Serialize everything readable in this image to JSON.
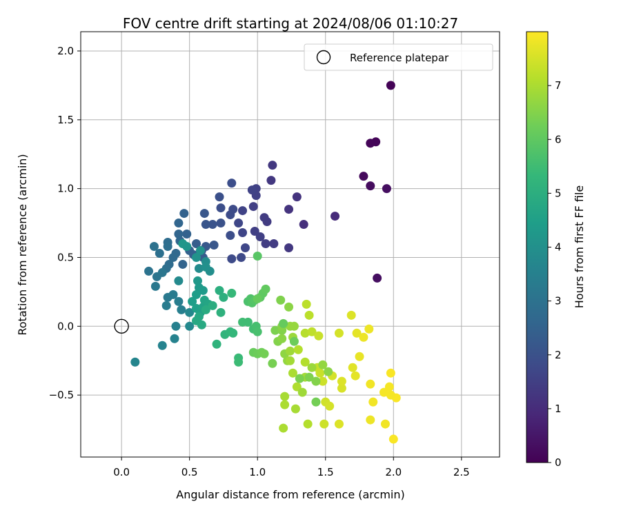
{
  "chart_data": {
    "type": "scatter",
    "title": "FOV centre drift starting at 2024/08/06 01:10:27",
    "xlabel": "Angular distance from reference (arcmin)",
    "ylabel": "Rotation from reference (arcmin)",
    "xlim": [
      -0.3,
      2.78
    ],
    "ylim": [
      -0.95,
      2.14
    ],
    "xticks": [
      0.0,
      0.5,
      1.0,
      1.5,
      2.0,
      2.5
    ],
    "xtick_labels": [
      "0.0",
      "0.5",
      "1.0",
      "1.5",
      "2.0",
      "2.5"
    ],
    "yticks": [
      -0.5,
      0.0,
      0.5,
      1.0,
      1.5,
      2.0
    ],
    "ytick_labels": [
      "−0.5",
      "0.0",
      "0.5",
      "1.0",
      "1.5",
      "2.0"
    ],
    "grid": true,
    "legend": {
      "position": "top-right",
      "entries": [
        "Reference platepar"
      ]
    },
    "colormap": "viridis",
    "colorbar": {
      "label": "Hours from first FF file",
      "range": [
        0,
        8
      ],
      "ticks": [
        0,
        1,
        2,
        3,
        4,
        5,
        6,
        7
      ],
      "tick_labels": [
        "0",
        "1",
        "2",
        "3",
        "4",
        "5",
        "6",
        "7"
      ]
    },
    "reference_point": {
      "x": 0.0,
      "y": 0.0
    },
    "points": [
      [
        1.98,
        1.75,
        0.05
      ],
      [
        1.87,
        1.34,
        0.1
      ],
      [
        1.83,
        1.33,
        0.1
      ],
      [
        1.78,
        1.09,
        0.2
      ],
      [
        1.83,
        1.02,
        0.25
      ],
      [
        1.95,
        1.0,
        0.3
      ],
      [
        1.88,
        0.35,
        0.3
      ],
      [
        1.57,
        0.8,
        1.0
      ],
      [
        1.34,
        0.74,
        1.1
      ],
      [
        1.29,
        0.94,
        1.2
      ],
      [
        1.23,
        0.85,
        1.2
      ],
      [
        1.11,
        1.17,
        1.3
      ],
      [
        1.1,
        1.06,
        1.3
      ],
      [
        1.23,
        0.57,
        1.3
      ],
      [
        1.12,
        0.6,
        1.4
      ],
      [
        1.07,
        0.76,
        1.4
      ],
      [
        1.05,
        0.79,
        1.4
      ],
      [
        1.06,
        0.6,
        1.45
      ],
      [
        1.02,
        0.65,
        1.5
      ],
      [
        0.98,
        0.69,
        1.5
      ],
      [
        0.97,
        0.87,
        1.5
      ],
      [
        0.99,
        0.95,
        1.55
      ],
      [
        0.99,
        1.0,
        1.55
      ],
      [
        0.96,
        0.99,
        1.6
      ],
      [
        0.89,
        0.84,
        1.6
      ],
      [
        0.89,
        0.68,
        1.65
      ],
      [
        0.86,
        0.75,
        1.7
      ],
      [
        0.91,
        0.57,
        1.7
      ],
      [
        0.88,
        0.5,
        1.75
      ],
      [
        0.81,
        0.49,
        1.8
      ],
      [
        0.82,
        0.85,
        1.8
      ],
      [
        0.8,
        0.81,
        1.85
      ],
      [
        0.81,
        1.04,
        1.9
      ],
      [
        0.8,
        0.66,
        1.9
      ],
      [
        0.73,
        0.86,
        1.9
      ],
      [
        0.72,
        0.94,
        1.95
      ],
      [
        0.73,
        0.75,
        2.0
      ],
      [
        0.67,
        0.74,
        2.05
      ],
      [
        0.62,
        0.74,
        2.1
      ],
      [
        0.61,
        0.82,
        2.15
      ],
      [
        0.68,
        0.59,
        2.15
      ],
      [
        0.62,
        0.58,
        2.2
      ],
      [
        0.59,
        0.55,
        2.25
      ],
      [
        0.6,
        0.5,
        2.3
      ],
      [
        0.55,
        0.6,
        2.35
      ],
      [
        0.53,
        0.52,
        2.4
      ],
      [
        0.5,
        0.55,
        2.45
      ],
      [
        0.48,
        0.67,
        2.5
      ],
      [
        0.46,
        0.82,
        2.5
      ],
      [
        0.45,
        0.45,
        2.55
      ],
      [
        0.42,
        0.75,
        2.6
      ],
      [
        0.42,
        0.67,
        2.6
      ],
      [
        0.43,
        0.62,
        2.65
      ],
      [
        0.4,
        0.53,
        2.7
      ],
      [
        0.38,
        0.5,
        2.75
      ],
      [
        0.35,
        0.45,
        2.8
      ],
      [
        0.34,
        0.61,
        2.85
      ],
      [
        0.34,
        0.58,
        2.9
      ],
      [
        0.33,
        0.42,
        2.9
      ],
      [
        0.28,
        0.53,
        2.95
      ],
      [
        0.24,
        0.58,
        3.0
      ],
      [
        0.2,
        0.4,
        3.05
      ],
      [
        0.26,
        0.36,
        3.1
      ],
      [
        0.3,
        0.39,
        3.15
      ],
      [
        0.25,
        0.29,
        3.2
      ],
      [
        0.34,
        0.21,
        3.25
      ],
      [
        0.38,
        0.23,
        3.3
      ],
      [
        0.33,
        0.15,
        3.35
      ],
      [
        0.42,
        0.18,
        3.4
      ],
      [
        0.44,
        0.12,
        3.45
      ],
      [
        0.4,
        0.0,
        3.5
      ],
      [
        0.39,
        -0.09,
        3.55
      ],
      [
        0.3,
        -0.14,
        3.6
      ],
      [
        0.1,
        -0.26,
        3.65
      ],
      [
        0.5,
        0.1,
        3.7
      ],
      [
        0.5,
        0.0,
        3.75
      ],
      [
        0.42,
        0.33,
        3.8
      ],
      [
        0.57,
        0.42,
        3.85
      ],
      [
        0.62,
        0.47,
        3.9
      ],
      [
        0.65,
        0.4,
        3.95
      ],
      [
        0.62,
        0.43,
        4.0
      ],
      [
        0.55,
        0.5,
        4.05
      ],
      [
        0.58,
        0.55,
        4.1
      ],
      [
        0.48,
        0.58,
        4.15
      ],
      [
        0.45,
        0.6,
        4.2
      ],
      [
        0.56,
        0.33,
        4.25
      ],
      [
        0.57,
        0.28,
        4.3
      ],
      [
        0.6,
        0.26,
        4.35
      ],
      [
        0.55,
        0.23,
        4.4
      ],
      [
        0.52,
        0.18,
        4.45
      ],
      [
        0.55,
        0.13,
        4.5
      ],
      [
        0.58,
        0.1,
        4.55
      ],
      [
        0.6,
        0.14,
        4.6
      ],
      [
        0.61,
        0.19,
        4.65
      ],
      [
        0.64,
        0.16,
        4.7
      ],
      [
        0.57,
        0.07,
        4.75
      ],
      [
        0.55,
        0.04,
        4.8
      ],
      [
        0.59,
        0.01,
        4.85
      ],
      [
        0.62,
        0.12,
        4.9
      ],
      [
        0.67,
        0.15,
        4.95
      ],
      [
        0.72,
        0.26,
        5.0
      ],
      [
        0.75,
        0.21,
        5.05
      ],
      [
        0.73,
        0.1,
        5.1
      ],
      [
        0.7,
        -0.13,
        5.15
      ],
      [
        0.76,
        -0.06,
        5.2
      ],
      [
        0.8,
        -0.04,
        5.25
      ],
      [
        0.82,
        -0.05,
        5.3
      ],
      [
        0.81,
        0.24,
        5.35
      ],
      [
        0.86,
        -0.23,
        5.4
      ],
      [
        0.86,
        -0.26,
        5.45
      ],
      [
        0.93,
        0.03,
        5.5
      ],
      [
        0.97,
        -0.02,
        5.55
      ],
      [
        0.99,
        0.0,
        5.6
      ],
      [
        1.0,
        -0.04,
        5.65
      ],
      [
        0.93,
        0.18,
        5.7
      ],
      [
        0.95,
        0.2,
        5.75
      ],
      [
        0.96,
        0.17,
        5.8
      ],
      [
        0.98,
        0.19,
        5.85
      ],
      [
        1.0,
        0.51,
        5.9
      ],
      [
        1.02,
        0.21,
        5.95
      ],
      [
        1.04,
        0.24,
        6.0
      ],
      [
        1.06,
        0.27,
        6.05
      ],
      [
        1.0,
        0.2,
        6.1
      ],
      [
        0.97,
        -0.19,
        6.15
      ],
      [
        1.0,
        -0.2,
        6.2
      ],
      [
        1.03,
        -0.19,
        6.25
      ],
      [
        1.05,
        -0.2,
        6.3
      ],
      [
        1.11,
        -0.27,
        6.35
      ],
      [
        1.13,
        -0.03,
        6.4
      ],
      [
        1.17,
        0.19,
        6.45
      ],
      [
        1.15,
        -0.11,
        6.5
      ],
      [
        1.18,
        -0.03,
        6.5
      ],
      [
        1.18,
        0.0,
        6.55
      ],
      [
        1.18,
        -0.09,
        6.6
      ],
      [
        1.23,
        0.14,
        6.6
      ],
      [
        1.2,
        -0.2,
        6.65
      ],
      [
        1.22,
        -0.25,
        6.7
      ],
      [
        1.24,
        0.0,
        6.75
      ],
      [
        1.27,
        0.0,
        6.75
      ],
      [
        1.26,
        -0.08,
        6.8
      ],
      [
        1.24,
        -0.18,
        6.85
      ],
      [
        1.24,
        -0.25,
        6.9
      ],
      [
        1.2,
        -0.51,
        6.95
      ],
      [
        1.2,
        -0.57,
        7.0
      ],
      [
        1.26,
        -0.34,
        7.0
      ],
      [
        1.29,
        -0.44,
        7.05
      ],
      [
        1.3,
        -0.17,
        7.1
      ],
      [
        1.35,
        -0.26,
        7.1
      ],
      [
        1.35,
        -0.05,
        7.15
      ],
      [
        1.36,
        0.16,
        7.2
      ],
      [
        1.38,
        0.08,
        7.2
      ],
      [
        1.4,
        -0.04,
        7.25
      ],
      [
        1.44,
        -0.3,
        7.3
      ],
      [
        1.45,
        -0.07,
        7.35
      ],
      [
        1.46,
        -0.34,
        7.35
      ],
      [
        1.48,
        -0.4,
        7.4
      ],
      [
        1.5,
        -0.55,
        7.45
      ],
      [
        1.53,
        -0.58,
        7.5
      ],
      [
        1.55,
        -0.36,
        7.5
      ],
      [
        1.6,
        -0.05,
        7.5
      ],
      [
        1.62,
        -0.45,
        7.55
      ],
      [
        1.62,
        -0.4,
        7.6
      ],
      [
        1.69,
        0.08,
        7.6
      ],
      [
        1.7,
        -0.3,
        7.65
      ],
      [
        1.72,
        -0.36,
        7.7
      ],
      [
        1.73,
        -0.05,
        7.7
      ],
      [
        1.75,
        -0.22,
        7.75
      ],
      [
        1.78,
        -0.08,
        7.8
      ],
      [
        1.82,
        -0.02,
        7.8
      ],
      [
        1.83,
        -0.42,
        7.85
      ],
      [
        1.85,
        -0.55,
        7.85
      ],
      [
        1.93,
        -0.48,
        7.9
      ],
      [
        1.97,
        -0.44,
        7.9
      ],
      [
        1.98,
        -0.34,
        7.95
      ],
      [
        2.02,
        -0.52,
        7.95
      ],
      [
        2.0,
        -0.82,
        7.95
      ],
      [
        1.98,
        -0.5,
        7.9
      ],
      [
        1.94,
        -0.71,
        7.85
      ],
      [
        1.83,
        -0.68,
        7.8
      ],
      [
        1.6,
        -0.71,
        7.6
      ],
      [
        1.49,
        -0.71,
        7.4
      ],
      [
        1.37,
        -0.71,
        7.1
      ],
      [
        1.19,
        -0.74,
        7.0
      ],
      [
        1.28,
        -0.6,
        6.95
      ],
      [
        1.35,
        -0.37,
        6.9
      ],
      [
        1.33,
        -0.48,
        6.85
      ],
      [
        1.4,
        -0.3,
        6.8
      ],
      [
        1.48,
        -0.28,
        6.7
      ],
      [
        1.52,
        -0.33,
        6.6
      ],
      [
        1.43,
        -0.4,
        6.5
      ],
      [
        1.38,
        -0.37,
        6.45
      ],
      [
        1.31,
        -0.38,
        6.4
      ],
      [
        1.43,
        -0.55,
        6.3
      ],
      [
        1.27,
        -0.11,
        6.2
      ],
      [
        1.19,
        0.02,
        6.1
      ],
      [
        0.89,
        0.03,
        5.5
      ]
    ]
  }
}
